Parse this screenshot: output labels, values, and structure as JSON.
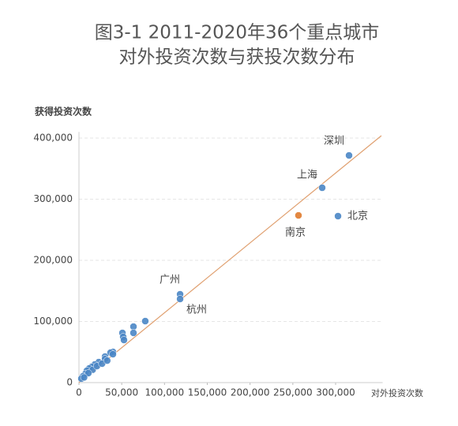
{
  "chart_data": {
    "type": "scatter",
    "title": [
      "图3-1 2011-2020年36个重点城市",
      "对外投资次数与获投次数分布"
    ],
    "x_label": "对外投资次数",
    "y_label": "获得投资次数",
    "xlim": [
      0,
      355000
    ],
    "ylim": [
      0,
      410000
    ],
    "xticks": [
      0,
      {
        "value": 50000,
        "label": "50,000"
      },
      {
        "value": 100000,
        "label": "100,000"
      },
      {
        "value": 150000,
        "label": "150,000"
      },
      {
        "value": 200000,
        "label": "200,000"
      },
      {
        "value": 250000,
        "label": "250,000"
      },
      {
        "value": 300000,
        "label": "300,000"
      }
    ],
    "yticks": [
      0,
      {
        "value": 100000,
        "label": "100,000"
      },
      {
        "value": 200000,
        "label": "200,000"
      },
      {
        "value": 300000,
        "label": "300,000"
      },
      {
        "value": 400000,
        "label": "400,000"
      }
    ],
    "grid": true,
    "series": [
      {
        "color": "#4a86c5",
        "x": [
          315700,
          284300,
          302800,
          118200,
          118200,
          77500,
          63700,
          63700,
          50800,
          51700,
          52600,
          39700,
          36900,
          39700,
          30500,
          30500,
          23100,
          18500,
          14800,
          12000,
          9200,
          7400,
          4600,
          2800,
          16000,
          21000,
          27000,
          33000,
          11000,
          6000
        ],
        "y": [
          371600,
          318700,
          272300,
          144500,
          136800,
          100600,
          91600,
          81300,
          81300,
          74800,
          69700,
          50300,
          49000,
          46500,
          42600,
          38700,
          33500,
          29700,
          25800,
          23200,
          19400,
          14200,
          10300,
          6500,
          21000,
          27000,
          31000,
          36000,
          15500,
          8500
        ],
        "labels": [
          "深圳",
          "上海",
          "北京",
          "广州",
          "杭州",
          null,
          null,
          null,
          null,
          null,
          null,
          null,
          null,
          null,
          null,
          null,
          null,
          null,
          null,
          null,
          null,
          null,
          null,
          null,
          null,
          null,
          null,
          null,
          null,
          null
        ]
      },
      {
        "color": "#e07b2e",
        "x": [
          256600
        ],
        "y": [
          273500
        ],
        "labels": [
          "南京"
        ]
      }
    ],
    "fit_line": {
      "color": "#e0a070",
      "x": [
        0,
        353500
      ],
      "y": [
        0,
        403900
      ]
    }
  }
}
